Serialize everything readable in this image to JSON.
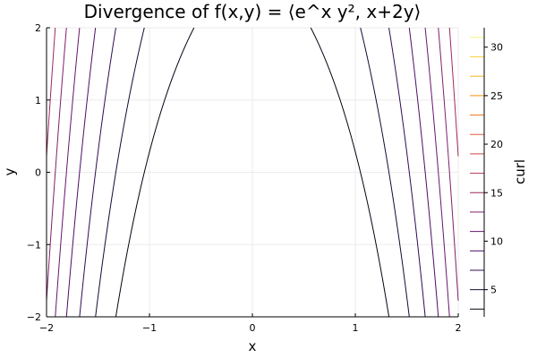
{
  "chart_data": {
    "type": "contour",
    "title": "Divergence of f(x,y) = ⟨e^x y², x+2y⟩",
    "xlabel": "x",
    "ylabel": "y",
    "colorbar_label": "curl",
    "xlim": [
      -2,
      2
    ],
    "ylim": [
      -2,
      2
    ],
    "x_ticks": [
      -2,
      -1,
      0,
      1,
      2
    ],
    "x_tick_labels": [
      "−2",
      "−1",
      "0",
      "1",
      "2"
    ],
    "y_ticks": [
      -2,
      -1,
      0,
      1,
      2
    ],
    "y_tick_labels": [
      "−2",
      "−1",
      "0",
      "1",
      "2"
    ],
    "colorbar_range": [
      2.2,
      32
    ],
    "colorbar_ticks": [
      5,
      10,
      15,
      20,
      25,
      30
    ],
    "colorbar_tick_labels": [
      "5",
      "10",
      "15",
      "20",
      "25",
      "30"
    ],
    "function": "abs(x) * e^abs(x) + y",
    "levels": [
      3,
      5,
      7,
      9,
      11,
      13,
      15,
      17,
      19,
      21,
      23,
      25,
      27,
      29,
      31
    ],
    "colormap": "inferno",
    "grid": true,
    "legend": "colorbar-right"
  }
}
